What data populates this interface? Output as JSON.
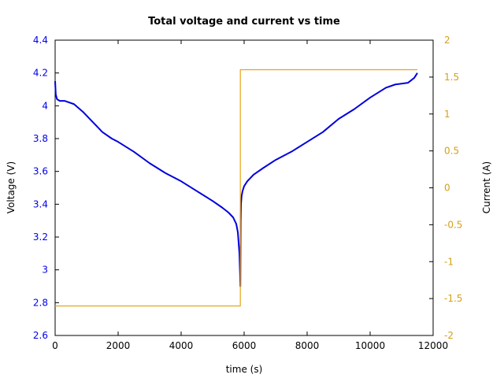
{
  "chart_data": {
    "type": "line",
    "title": "Total voltage and current vs time",
    "xlabel": "time (s)",
    "ylabel_left": "Voltage (V)",
    "ylabel_right": "Current (A)",
    "xlim": [
      0,
      12000
    ],
    "ylim_left": [
      2.6,
      4.4
    ],
    "ylim_right": [
      -2,
      2
    ],
    "x_ticks": [
      0,
      2000,
      4000,
      6000,
      8000,
      10000,
      12000
    ],
    "x_tick_labels": [
      "0",
      "2000",
      "4000",
      "6000",
      "8000",
      "10000",
      "12000"
    ],
    "y_left_ticks": [
      2.6,
      2.8,
      3.0,
      3.2,
      3.4,
      3.6,
      3.8,
      4.0,
      4.2,
      4.4
    ],
    "y_left_tick_labels": [
      "2.6",
      "2.8",
      "3",
      "3.2",
      "3.4",
      "3.6",
      "3.8",
      "4",
      "4.2",
      "4.4"
    ],
    "y_right_ticks": [
      -2,
      -1.5,
      -1,
      -0.5,
      0,
      0.5,
      1,
      1.5,
      2
    ],
    "y_right_tick_labels": [
      "-2",
      "-1.5",
      "-1",
      "-0.5",
      "0",
      "0.5",
      "1",
      "1.5",
      "2"
    ],
    "grid": false,
    "colors": {
      "voltage": "#0000dd",
      "current": "#e8a317",
      "left_axis_text": "#0000ee",
      "right_axis_text": "#d4a017"
    },
    "series": [
      {
        "axis": "left",
        "x": [
          0,
          20,
          60,
          150,
          300,
          600,
          900,
          1200,
          1500,
          1800,
          2000,
          2500,
          3000,
          3500,
          4000,
          4500,
          5000,
          5300,
          5500,
          5650,
          5750,
          5800,
          5850,
          5870,
          5880,
          5885,
          5890,
          5900,
          5920,
          5950,
          6000,
          6100,
          6300,
          6600,
          7000,
          7500,
          8000,
          8500,
          9000,
          9500,
          10000,
          10500,
          10800,
          11200,
          11400,
          11500
        ],
        "values": [
          4.15,
          4.07,
          4.04,
          4.03,
          4.03,
          4.01,
          3.96,
          3.9,
          3.84,
          3.8,
          3.78,
          3.72,
          3.65,
          3.59,
          3.54,
          3.48,
          3.42,
          3.38,
          3.35,
          3.32,
          3.28,
          3.23,
          3.1,
          2.98,
          2.9,
          3.1,
          3.3,
          3.4,
          3.45,
          3.48,
          3.51,
          3.54,
          3.58,
          3.62,
          3.67,
          3.72,
          3.78,
          3.84,
          3.92,
          3.98,
          4.05,
          4.11,
          4.13,
          4.14,
          4.17,
          4.2
        ]
      },
      {
        "axis": "right",
        "x": [
          0,
          5880,
          5880,
          11500
        ],
        "values": [
          -1.6,
          -1.6,
          1.6,
          1.6
        ]
      }
    ]
  }
}
